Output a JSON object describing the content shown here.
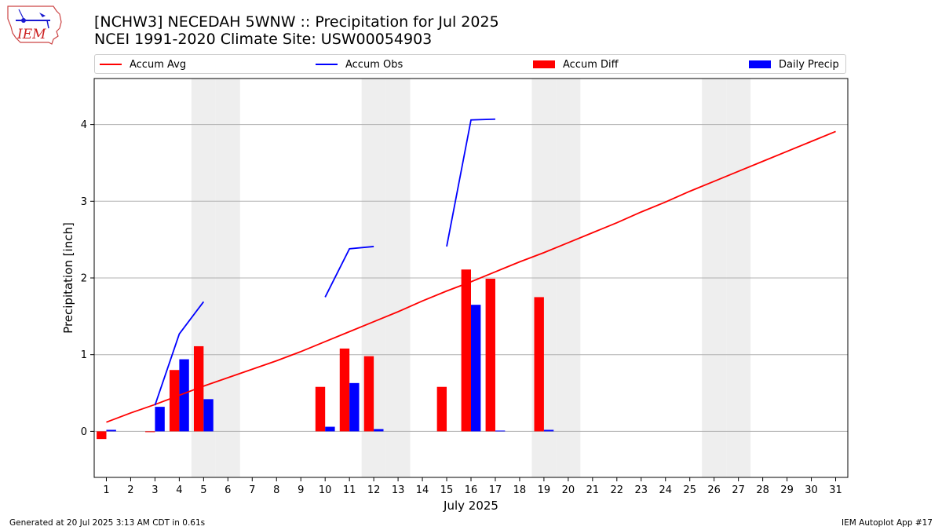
{
  "header": {
    "title_line1": "[NCHW3] NECEDAH 5WNW :: Precipitation for Jul 2025",
    "title_line2": "NCEI 1991-2020 Climate Site: USW00054903"
  },
  "logo": {
    "text": "IEM"
  },
  "footer": {
    "generated": "Generated at 20 Jul 2025 3:13 AM CDT in 0.61s",
    "app": "IEM Autoplot App #17"
  },
  "colors": {
    "avg": "#ff0000",
    "obs": "#0000ff",
    "diff": "#ff0000",
    "daily": "#0000ff",
    "weekend": "#eeeeee",
    "grid": "#b0b0b0"
  },
  "chart_data": {
    "type": "bar",
    "xlabel": "July 2025",
    "ylabel": "Precipitation [inch]",
    "xlim": [
      0.5,
      31.5
    ],
    "ylim": [
      -0.6,
      4.6
    ],
    "yticks": [
      0,
      1,
      2,
      3,
      4
    ],
    "categories": [
      1,
      2,
      3,
      4,
      5,
      6,
      7,
      8,
      9,
      10,
      11,
      12,
      13,
      14,
      15,
      16,
      17,
      18,
      19,
      20,
      21,
      22,
      23,
      24,
      25,
      26,
      27,
      28,
      29,
      30,
      31
    ],
    "weekend_days": [
      5,
      6,
      12,
      13,
      19,
      20,
      26,
      27
    ],
    "legend": [
      "Accum Avg",
      "Accum Obs",
      "Accum Diff",
      "Daily Precip"
    ],
    "series": [
      {
        "name": "Accum Avg",
        "kind": "line",
        "x": [
          1,
          2,
          3,
          4,
          5,
          6,
          7,
          8,
          9,
          10,
          11,
          12,
          13,
          14,
          15,
          16,
          17,
          18,
          19,
          20,
          21,
          22,
          23,
          24,
          25,
          26,
          27,
          28,
          29,
          30,
          31
        ],
        "values": [
          0.12,
          0.24,
          0.35,
          0.47,
          0.59,
          0.7,
          0.81,
          0.92,
          1.04,
          1.17,
          1.3,
          1.43,
          1.56,
          1.7,
          1.83,
          1.95,
          2.08,
          2.21,
          2.33,
          2.46,
          2.59,
          2.72,
          2.86,
          2.99,
          3.13,
          3.26,
          3.39,
          3.52,
          3.65,
          3.78,
          3.91
        ]
      },
      {
        "name": "Accum Obs",
        "kind": "line",
        "segments": [
          {
            "x": [
              3,
              4,
              5
            ],
            "values": [
              0.34,
              1.27,
              1.69
            ]
          },
          {
            "x": [
              10,
              11,
              12
            ],
            "values": [
              1.75,
              2.38,
              2.41
            ]
          },
          {
            "x": [
              15,
              16,
              17
            ],
            "values": [
              2.41,
              4.06,
              4.07
            ]
          }
        ]
      },
      {
        "name": "Accum Diff",
        "kind": "bar",
        "x": [
          1,
          3,
          4,
          5,
          10,
          11,
          12,
          15,
          16,
          17,
          19
        ],
        "values": [
          -0.1,
          -0.01,
          0.8,
          1.11,
          0.58,
          1.08,
          0.98,
          0.58,
          2.11,
          1.99,
          1.75
        ]
      },
      {
        "name": "Daily Precip",
        "kind": "bar",
        "x": [
          1,
          3,
          4,
          5,
          10,
          11,
          12,
          16,
          17,
          19
        ],
        "values": [
          0.02,
          0.32,
          0.94,
          0.42,
          0.06,
          0.63,
          0.03,
          1.65,
          0.01,
          0.02
        ]
      }
    ]
  }
}
